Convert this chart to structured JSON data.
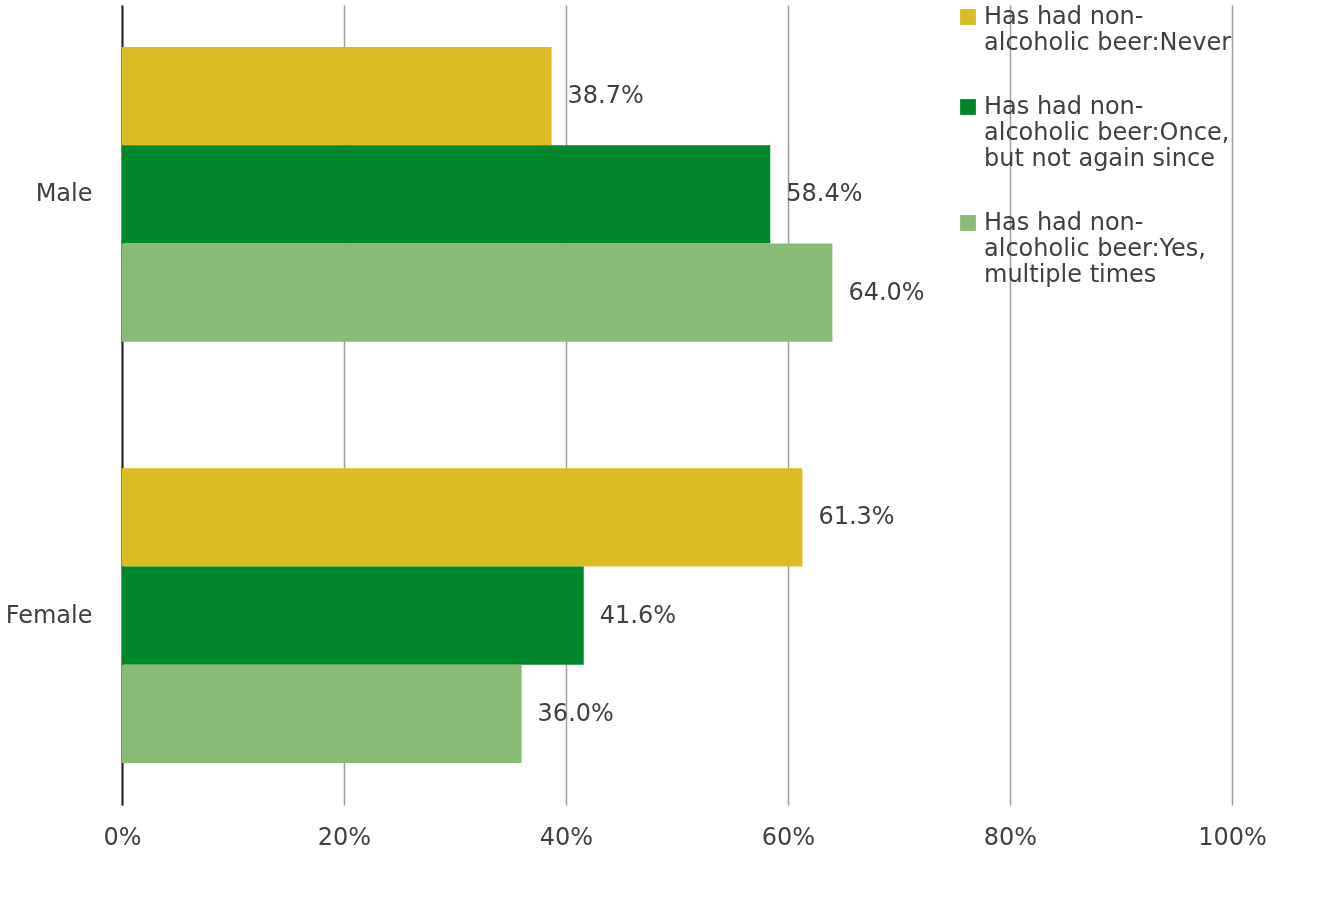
{
  "chart_data": {
    "type": "bar",
    "orientation": "horizontal",
    "categories": [
      "Male",
      "Female"
    ],
    "series": [
      {
        "name": "Has had non-alcoholic beer:Never",
        "color": "#dbbc22",
        "values": [
          38.7,
          61.3
        ],
        "value_labels": [
          "38.7%",
          "61.3%"
        ]
      },
      {
        "name": "Has had non-alcoholic beer:Once, but not again since",
        "color": "#00872b",
        "values": [
          58.4,
          41.6
        ],
        "value_labels": [
          "58.4%",
          "41.6%"
        ]
      },
      {
        "name": "Has had non-alcoholic beer:Yes, multiple times",
        "color": "#88bc76",
        "values": [
          64.0,
          36.0
        ],
        "value_labels": [
          "64.0%",
          "36.0%"
        ]
      }
    ],
    "xlim": [
      0,
      100
    ],
    "xticks": [
      {
        "value": 0,
        "label": "0%"
      },
      {
        "value": 20,
        "label": "20%"
      },
      {
        "value": 40,
        "label": "40%"
      },
      {
        "value": 60,
        "label": "60%"
      },
      {
        "value": 80,
        "label": "80%"
      },
      {
        "value": 100,
        "label": "100%"
      }
    ],
    "grid": "x",
    "legend": "top right"
  }
}
